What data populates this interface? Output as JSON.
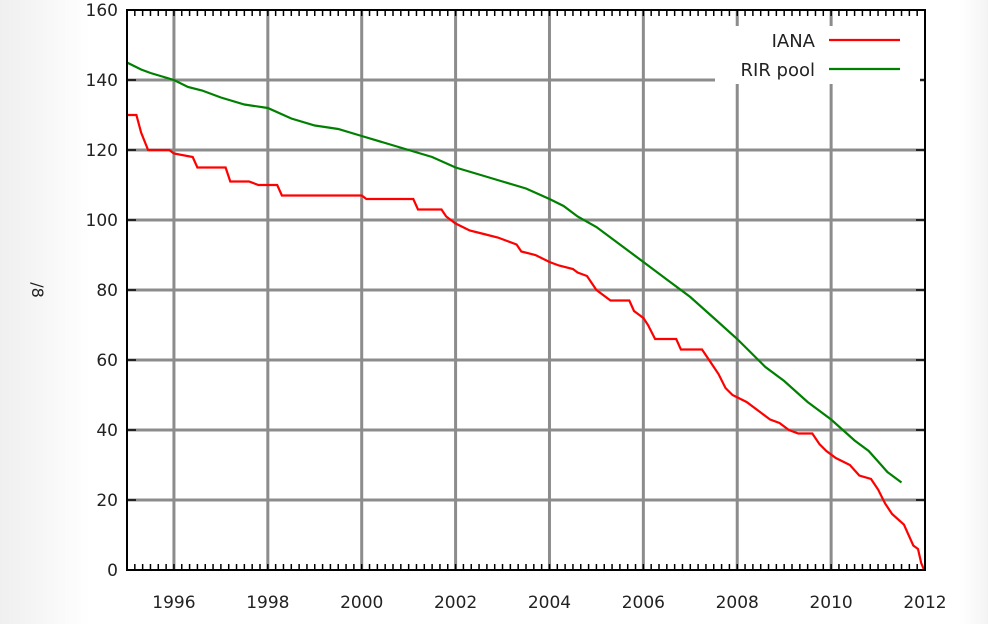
{
  "chart_data": {
    "type": "line",
    "title": "",
    "xlabel": "",
    "ylabel": "/8",
    "xlim": [
      1995,
      2012
    ],
    "ylim": [
      0,
      160
    ],
    "x_ticks": [
      "1996",
      "1998",
      "2000",
      "2002",
      "2004",
      "2006",
      "2008",
      "2010",
      "2012"
    ],
    "y_ticks": [
      "0",
      "20",
      "40",
      "60",
      "80",
      "100",
      "120",
      "140",
      "160"
    ],
    "grid": true,
    "legend_position": "top-right",
    "series": [
      {
        "name": "IANA",
        "color": "#ff0000",
        "step": true,
        "points": [
          [
            1995.0,
            130
          ],
          [
            1995.2,
            130
          ],
          [
            1995.3,
            125
          ],
          [
            1995.45,
            120
          ],
          [
            1995.9,
            120
          ],
          [
            1996.0,
            119
          ],
          [
            1996.4,
            118
          ],
          [
            1996.5,
            115
          ],
          [
            1997.1,
            115
          ],
          [
            1997.2,
            111
          ],
          [
            1997.6,
            111
          ],
          [
            1997.8,
            110
          ],
          [
            1998.2,
            110
          ],
          [
            1998.3,
            107
          ],
          [
            2000.0,
            107
          ],
          [
            2000.1,
            106
          ],
          [
            2001.1,
            106
          ],
          [
            2001.2,
            103
          ],
          [
            2001.7,
            103
          ],
          [
            2001.8,
            101
          ],
          [
            2002.0,
            99
          ],
          [
            2002.3,
            97
          ],
          [
            2002.6,
            96
          ],
          [
            2002.9,
            95
          ],
          [
            2003.1,
            94
          ],
          [
            2003.3,
            93
          ],
          [
            2003.4,
            91
          ],
          [
            2003.7,
            90
          ],
          [
            2004.0,
            88
          ],
          [
            2004.2,
            87
          ],
          [
            2004.5,
            86
          ],
          [
            2004.6,
            85
          ],
          [
            2004.8,
            84
          ],
          [
            2005.0,
            80
          ],
          [
            2005.1,
            79
          ],
          [
            2005.3,
            77
          ],
          [
            2005.7,
            77
          ],
          [
            2005.8,
            74
          ],
          [
            2006.0,
            72
          ],
          [
            2006.1,
            70
          ],
          [
            2006.25,
            66
          ],
          [
            2006.7,
            66
          ],
          [
            2006.8,
            63
          ],
          [
            2007.25,
            63
          ],
          [
            2007.4,
            60
          ],
          [
            2007.6,
            56
          ],
          [
            2007.75,
            52
          ],
          [
            2007.9,
            50
          ],
          [
            2008.2,
            48
          ],
          [
            2008.5,
            45
          ],
          [
            2008.7,
            43
          ],
          [
            2008.9,
            42
          ],
          [
            2009.1,
            40
          ],
          [
            2009.3,
            39
          ],
          [
            2009.6,
            39
          ],
          [
            2009.75,
            36
          ],
          [
            2009.9,
            34
          ],
          [
            2010.1,
            32
          ],
          [
            2010.4,
            30
          ],
          [
            2010.6,
            27
          ],
          [
            2010.85,
            26
          ],
          [
            2011.0,
            23
          ],
          [
            2011.15,
            19
          ],
          [
            2011.3,
            16
          ],
          [
            2011.55,
            13
          ],
          [
            2011.75,
            7
          ],
          [
            2011.85,
            6
          ],
          [
            2011.92,
            2
          ],
          [
            2011.98,
            0
          ]
        ]
      },
      {
        "name": "RIR pool",
        "color": "#008000",
        "step": false,
        "points": [
          [
            1995.0,
            145
          ],
          [
            1995.3,
            143
          ],
          [
            1995.5,
            142
          ],
          [
            1996.0,
            140
          ],
          [
            1996.3,
            138
          ],
          [
            1996.6,
            137
          ],
          [
            1997.0,
            135
          ],
          [
            1997.5,
            133
          ],
          [
            1998.0,
            132
          ],
          [
            1998.5,
            129
          ],
          [
            1999.0,
            127
          ],
          [
            1999.5,
            126
          ],
          [
            2000.0,
            124
          ],
          [
            2000.5,
            122
          ],
          [
            2001.0,
            120
          ],
          [
            2001.5,
            118
          ],
          [
            2002.0,
            115
          ],
          [
            2002.5,
            113
          ],
          [
            2003.0,
            111
          ],
          [
            2003.5,
            109
          ],
          [
            2004.0,
            106
          ],
          [
            2004.3,
            104
          ],
          [
            2004.6,
            101
          ],
          [
            2005.0,
            98
          ],
          [
            2005.5,
            93
          ],
          [
            2006.0,
            88
          ],
          [
            2006.5,
            83
          ],
          [
            2007.0,
            78
          ],
          [
            2007.5,
            72
          ],
          [
            2008.0,
            66
          ],
          [
            2008.3,
            62
          ],
          [
            2008.6,
            58
          ],
          [
            2009.0,
            54
          ],
          [
            2009.5,
            48
          ],
          [
            2010.0,
            43
          ],
          [
            2010.5,
            37
          ],
          [
            2010.8,
            34
          ],
          [
            2011.0,
            31
          ],
          [
            2011.2,
            28
          ],
          [
            2011.4,
            26
          ],
          [
            2011.5,
            25
          ]
        ]
      }
    ]
  }
}
